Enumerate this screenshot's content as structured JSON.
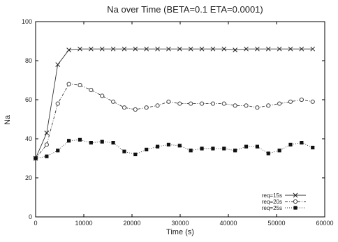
{
  "chart_data": {
    "type": "line",
    "title": "Na over Time (BETA=0.1 ETA=0.0001)",
    "xlabel": "Time (s)",
    "ylabel": "Na",
    "xlim": [
      0,
      60000
    ],
    "ylim": [
      0,
      100
    ],
    "xticks": [
      0,
      10000,
      20000,
      30000,
      40000,
      50000,
      60000
    ],
    "yticks": [
      0,
      20,
      40,
      60,
      80,
      100
    ],
    "grid": false,
    "legend_position": "bottom-right",
    "series": [
      {
        "name": "req=15s",
        "marker": "x",
        "line": "solid",
        "x": [
          0,
          2300,
          4600,
          6900,
          9200,
          11500,
          13800,
          16100,
          18400,
          20700,
          23000,
          25300,
          27600,
          29900,
          32200,
          34500,
          36800,
          39100,
          41400,
          43700,
          46000,
          48300,
          50600,
          52900,
          55200,
          57500
        ],
        "y": [
          30,
          43,
          78,
          85.5,
          86,
          86,
          86,
          86,
          86,
          86,
          86,
          86,
          86,
          86,
          86,
          86,
          86,
          86,
          85.5,
          86,
          86,
          86,
          86,
          86,
          86,
          86
        ]
      },
      {
        "name": "req=20s",
        "marker": "circle",
        "line": "dashdot",
        "x": [
          0,
          2300,
          4600,
          6900,
          9200,
          11500,
          13800,
          16100,
          18400,
          20700,
          23000,
          25300,
          27600,
          29900,
          32200,
          34500,
          36800,
          39100,
          41400,
          43700,
          46000,
          48300,
          50600,
          52900,
          55200,
          57500
        ],
        "y": [
          30,
          37,
          58,
          68,
          67.5,
          65,
          62,
          59,
          56,
          55,
          56,
          57,
          59,
          58,
          58,
          58,
          58,
          58,
          57,
          57,
          56,
          57,
          58,
          59,
          60,
          59
        ]
      },
      {
        "name": "req=25s",
        "marker": "square",
        "line": "dotted",
        "x": [
          0,
          2300,
          4600,
          6900,
          9200,
          11500,
          13800,
          16100,
          18400,
          20700,
          23000,
          25300,
          27600,
          29900,
          32200,
          34500,
          36800,
          39100,
          41400,
          43700,
          46000,
          48300,
          50600,
          52900,
          55200,
          57500
        ],
        "y": [
          30,
          31,
          34,
          39,
          39.5,
          38,
          38.5,
          38,
          33.5,
          32,
          34.5,
          36,
          37,
          36.5,
          34,
          35,
          35,
          35,
          34,
          36,
          36,
          32.5,
          34,
          37,
          38,
          35.5
        ]
      }
    ]
  }
}
